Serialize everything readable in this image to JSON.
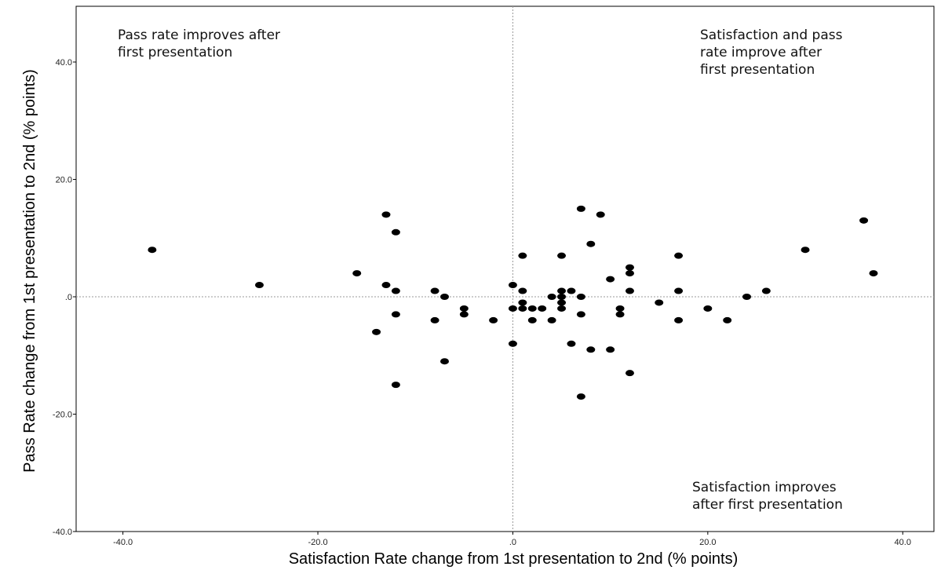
{
  "chart_data": {
    "type": "scatter",
    "x_label": "Satisfaction Rate change from 1st presentation to 2nd (% points)",
    "y_label": "Pass Rate change from 1st presentation to 2nd (% points)",
    "annotations": [
      {
        "lines": [
          "Pass rate improves after",
          "first presentation"
        ]
      },
      {
        "lines": [
          "Satisfaction and pass",
          "rate improve after",
          "first presentation"
        ]
      },
      {
        "lines": [
          "Satisfaction improves",
          "after first presentation"
        ]
      }
    ],
    "color": "#000000",
    "reference_lines": true,
    "xlim": [
      -44.8,
      43.2
    ],
    "ylim": [
      -40,
      49.5
    ],
    "xticks": [
      {
        "value": -40,
        "label": "-40.0"
      },
      {
        "value": -20,
        "label": "-20.0"
      },
      {
        "value": 0,
        "label": ".0"
      },
      {
        "value": 20,
        "label": "20.0"
      },
      {
        "value": 40,
        "label": "40.0"
      }
    ],
    "yticks": [
      {
        "value": -40,
        "label": "-40.0"
      },
      {
        "value": -20,
        "label": "-20.0"
      },
      {
        "value": 0,
        "label": ".0"
      },
      {
        "value": 20,
        "label": "20.0"
      },
      {
        "value": 40,
        "label": "40.0"
      }
    ],
    "x": [
      -37,
      -26,
      -16,
      -14,
      -13,
      -13,
      -12,
      -12,
      -12,
      -12,
      -8,
      -8,
      -7,
      -7,
      -5,
      -5,
      -2,
      0,
      0,
      0,
      1,
      1,
      1,
      1,
      2,
      2,
      3,
      4,
      4,
      5,
      5,
      5,
      5,
      5,
      6,
      6,
      7,
      7,
      7,
      7,
      8,
      8,
      9,
      10,
      10,
      11,
      11,
      12,
      12,
      12,
      12,
      15,
      17,
      17,
      17,
      20,
      22,
      24,
      26,
      30,
      36,
      37
    ],
    "y": [
      8,
      2,
      4,
      -6,
      14,
      2,
      11,
      1,
      -3,
      -15,
      1,
      -4,
      0,
      -11,
      -2,
      -3,
      -4,
      2,
      -2,
      -8,
      7,
      1,
      -1,
      -2,
      -2,
      -4,
      -2,
      0,
      -4,
      7,
      1,
      0,
      -1,
      -2,
      1,
      -8,
      15,
      0,
      -3,
      -17,
      9,
      -9,
      14,
      3,
      -9,
      -2,
      -3,
      5,
      4,
      1,
      -13,
      -1,
      7,
      1,
      -4,
      -2,
      -4,
      0,
      1,
      8,
      13,
      4
    ]
  }
}
